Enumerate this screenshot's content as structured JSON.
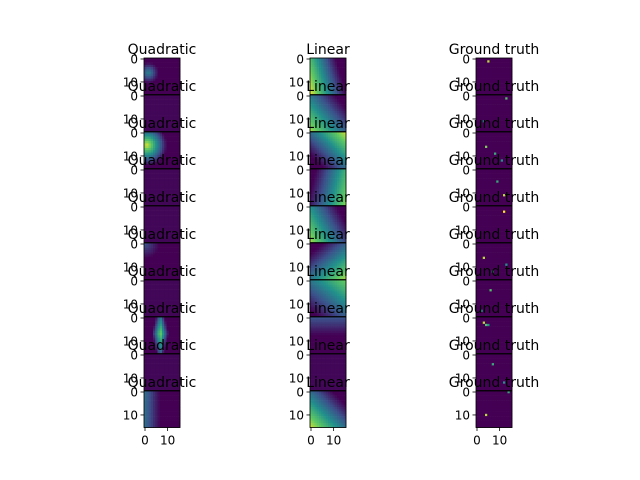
{
  "chart_data": {
    "type": "heatmap",
    "layout": {
      "rows": 10,
      "columns": 3,
      "column_titles": [
        "Quadratic",
        "Linear",
        "Ground truth"
      ]
    },
    "x_ticks": [
      "0",
      "10"
    ],
    "y_ticks": [
      "0",
      "10"
    ],
    "colormap": "viridis",
    "colors": [
      "#440154",
      "#3b528b",
      "#21918c",
      "#5ec962",
      "#fde725"
    ],
    "panels": {
      "Quadratic": [
        {
          "row": 1,
          "pattern": "mostly low values, faint green patch at top-left"
        },
        {
          "row": 2,
          "pattern": "low values, slight variation"
        },
        {
          "row": 3,
          "pattern": "bright yellow-green blob at left, fading to the right"
        },
        {
          "row": 4,
          "pattern": "uniform low values"
        },
        {
          "row": 5,
          "pattern": "uniform low values"
        },
        {
          "row": 6,
          "pattern": "faint blue gradient near top-left"
        },
        {
          "row": 7,
          "pattern": "uniform low values"
        },
        {
          "row": 8,
          "pattern": "green-yellow vertical streak near the centre"
        },
        {
          "row": 9,
          "pattern": "uniform low values"
        },
        {
          "row": 10,
          "pattern": "blue-teal gradient at left edge"
        }
      ],
      "Linear": [
        {
          "row": 1,
          "pattern": "teal-green gradient increasing to the left"
        },
        {
          "row": 2,
          "pattern": "teal-green gradient"
        },
        {
          "row": 3,
          "pattern": "blue to teal gradient"
        },
        {
          "row": 4,
          "pattern": "teal to green gradient"
        },
        {
          "row": 5,
          "pattern": "green to teal gradient"
        },
        {
          "row": 6,
          "pattern": "teal to green gradient"
        },
        {
          "row": 7,
          "pattern": "blue-green gradient"
        },
        {
          "row": 8,
          "pattern": "mostly low, faint teal at top"
        },
        {
          "row": 9,
          "pattern": "uniform low values"
        },
        {
          "row": 10,
          "pattern": "teal-green gradient increasing to the bottom-left"
        }
      ],
      "Ground truth": [
        {
          "row": 1,
          "pattern": "sparse single bright pixel on dark background"
        },
        {
          "row": 2,
          "pattern": "sparse bright pixels"
        },
        {
          "row": 3,
          "pattern": "a few scattered bright pixels"
        },
        {
          "row": 4,
          "pattern": "sparse bright pixels"
        },
        {
          "row": 5,
          "pattern": "single yellow pixel"
        },
        {
          "row": 6,
          "pattern": "a few scattered bright pixels"
        },
        {
          "row": 7,
          "pattern": "sparse bright pixels"
        },
        {
          "row": 8,
          "pattern": "small green-yellow cluster"
        },
        {
          "row": 9,
          "pattern": "sparse bright pixels"
        },
        {
          "row": 10,
          "pattern": "sparse bright pixels"
        }
      ]
    }
  }
}
